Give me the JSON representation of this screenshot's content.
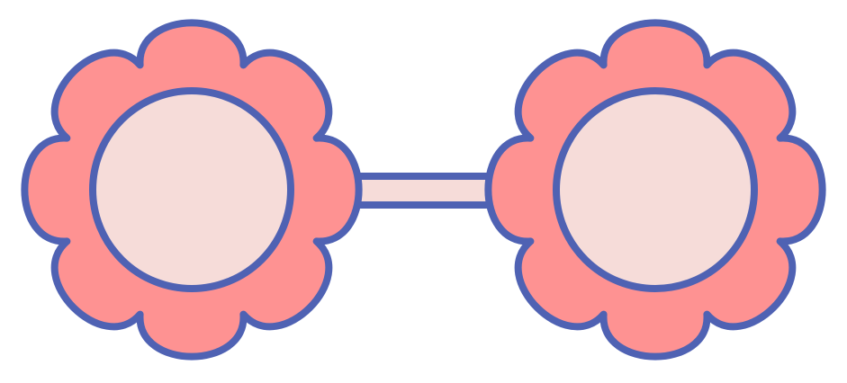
{
  "illustration": {
    "icon": "flower-sunglasses-icon",
    "colors": {
      "outline": "#4f62b3",
      "petals": "#fe9292",
      "lens": "#f6dcd9",
      "bridge": "#f6dcd9",
      "background": "#ffffff"
    },
    "petal_count": 8
  }
}
